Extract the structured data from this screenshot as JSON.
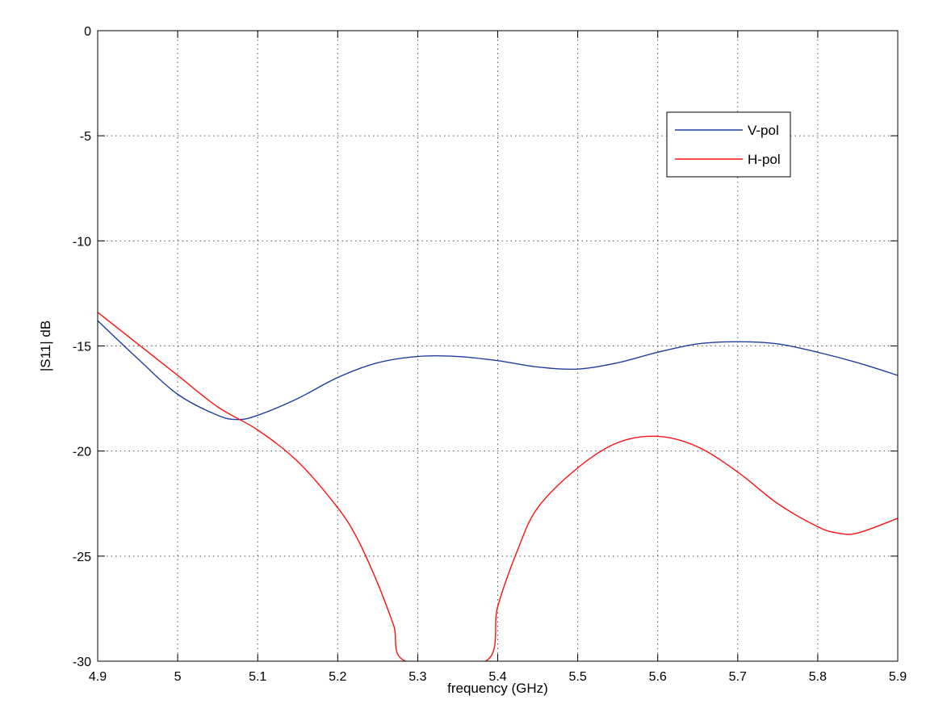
{
  "chart_data": {
    "type": "line",
    "xlabel": "frequency (GHz)",
    "ylabel": "|S11| dB",
    "xlim": [
      4.9,
      5.9
    ],
    "ylim": [
      -30,
      0
    ],
    "xticks": [
      4.9,
      5.0,
      5.1,
      5.2,
      5.3,
      5.4,
      5.5,
      5.6,
      5.7,
      5.8,
      5.9
    ],
    "xtick_labels": [
      "4.9",
      "5",
      "5.1",
      "5.2",
      "5.3",
      "5.4",
      "5.5",
      "5.6",
      "5.7",
      "5.8",
      "5.9"
    ],
    "yticks": [
      0,
      -5,
      -10,
      -15,
      -20,
      -25,
      -30
    ],
    "ytick_labels": [
      "0",
      "-5",
      "-10",
      "-15",
      "-20",
      "-25",
      "-30"
    ],
    "grid": true,
    "legend_position": "top-right",
    "series": [
      {
        "name": "V-pol",
        "color": "#1f3f9f",
        "x": [
          4.9,
          4.95,
          5.0,
          5.05,
          5.075,
          5.1,
          5.15,
          5.2,
          5.25,
          5.3,
          5.35,
          5.4,
          5.45,
          5.5,
          5.55,
          5.6,
          5.65,
          5.7,
          5.75,
          5.8,
          5.85,
          5.9
        ],
        "y": [
          -13.8,
          -15.6,
          -17.3,
          -18.3,
          -18.5,
          -18.3,
          -17.5,
          -16.5,
          -15.8,
          -15.5,
          -15.5,
          -15.7,
          -16.0,
          -16.1,
          -15.8,
          -15.3,
          -14.9,
          -14.8,
          -14.9,
          -15.3,
          -15.8,
          -16.4
        ]
      },
      {
        "name": "H-pol",
        "color": "#ff1010",
        "x": [
          4.9,
          4.95,
          5.0,
          5.05,
          5.1,
          5.15,
          5.2,
          5.225,
          5.25,
          5.27,
          5.285,
          5.385,
          5.4,
          5.425,
          5.45,
          5.5,
          5.55,
          5.6,
          5.65,
          5.7,
          5.75,
          5.8,
          5.825,
          5.85,
          5.9
        ],
        "y": [
          -13.4,
          -14.9,
          -16.4,
          -17.9,
          -19.0,
          -20.5,
          -22.7,
          -24.2,
          -26.3,
          -28.3,
          -30.0,
          -30.0,
          -27.4,
          -24.7,
          -22.7,
          -20.8,
          -19.6,
          -19.3,
          -19.8,
          -21.0,
          -22.5,
          -23.6,
          -23.9,
          -23.9,
          -23.2
        ]
      }
    ]
  }
}
